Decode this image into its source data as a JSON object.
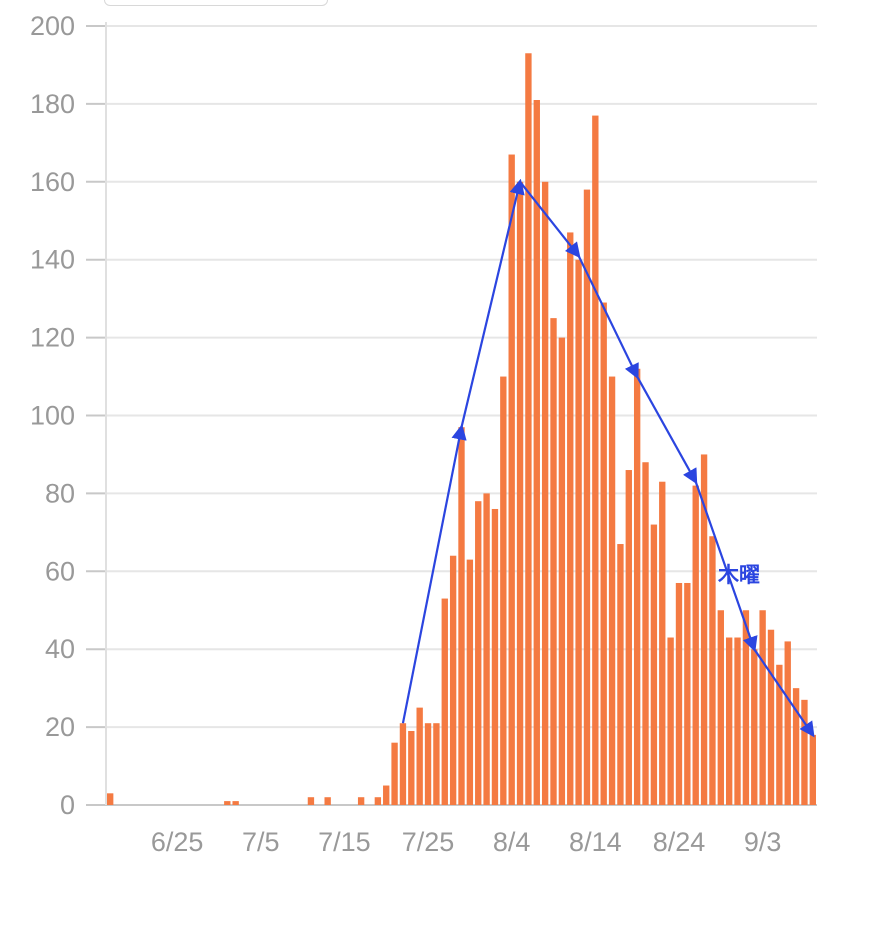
{
  "chart_data": {
    "type": "bar",
    "x_start": "6/17",
    "y_ticks": [
      0,
      20,
      40,
      60,
      80,
      100,
      120,
      140,
      160,
      180,
      200
    ],
    "ylim": [
      0,
      200
    ],
    "x_tick_labels": [
      {
        "label": "6/25",
        "index": 8
      },
      {
        "label": "7/5",
        "index": 18
      },
      {
        "label": "7/15",
        "index": 28
      },
      {
        "label": "7/25",
        "index": 38
      },
      {
        "label": "8/4",
        "index": 48
      },
      {
        "label": "8/14",
        "index": 58
      },
      {
        "label": "8/24",
        "index": 68
      },
      {
        "label": "9/3",
        "index": 78
      }
    ],
    "values": [
      3,
      0,
      0,
      0,
      0,
      0,
      0,
      0,
      0,
      0,
      0,
      0,
      0,
      0,
      1,
      1,
      0,
      0,
      0,
      0,
      0,
      0,
      0,
      0,
      2,
      0,
      2,
      0,
      0,
      0,
      2,
      0,
      2,
      5,
      16,
      21,
      19,
      25,
      21,
      21,
      53,
      64,
      97,
      63,
      78,
      80,
      76,
      110,
      167,
      160,
      193,
      181,
      160,
      125,
      120,
      147,
      140,
      158,
      177,
      129,
      110,
      67,
      86,
      112,
      88,
      72,
      83,
      43,
      57,
      57,
      82,
      90,
      69,
      50,
      43,
      43,
      50,
      40,
      50,
      45,
      36,
      42,
      30,
      27,
      18
    ],
    "bar_color": "#f47a42",
    "grid": true,
    "series": [
      {
        "values": "values"
      }
    ],
    "trend_line": {
      "color": "#2b45e0",
      "points": [
        [
          35,
          21
        ],
        [
          42,
          97
        ],
        [
          49,
          160
        ],
        [
          56,
          141
        ],
        [
          63,
          110
        ],
        [
          70,
          83
        ],
        [
          77,
          40
        ],
        [
          84,
          18
        ]
      ]
    },
    "annotations": [
      {
        "text": "木曜"
      }
    ]
  }
}
